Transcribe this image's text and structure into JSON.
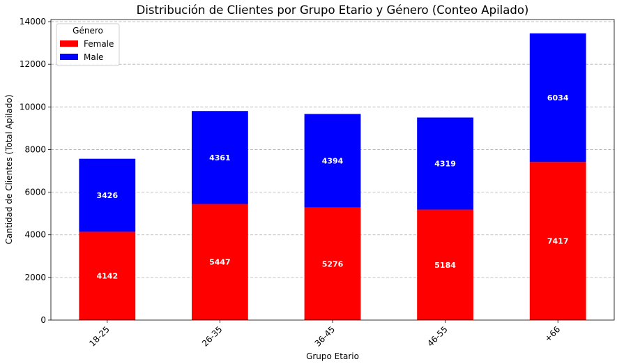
{
  "chart_data": {
    "type": "bar",
    "stacked": true,
    "title": "Distribución de Clientes por Grupo Etario y Género (Conteo Apilado)",
    "xlabel": "Grupo Etario",
    "ylabel": "Cantidad de Clientes (Total Apilado)",
    "categories": [
      "18-25",
      "26-35",
      "36-45",
      "46-55",
      "+66"
    ],
    "series": [
      {
        "name": "Female",
        "color": "#ff0000",
        "values": [
          4142,
          5447,
          5276,
          5184,
          7417
        ]
      },
      {
        "name": "Male",
        "color": "#0000ff",
        "values": [
          3426,
          4361,
          4394,
          4319,
          6034
        ]
      }
    ],
    "ylim": [
      0,
      14100
    ],
    "yticks": [
      0,
      2000,
      4000,
      6000,
      8000,
      10000,
      12000,
      14000
    ],
    "grid": "y-dashed",
    "legend": {
      "title": "Género",
      "placement": "top-left"
    },
    "data_labels": true
  }
}
